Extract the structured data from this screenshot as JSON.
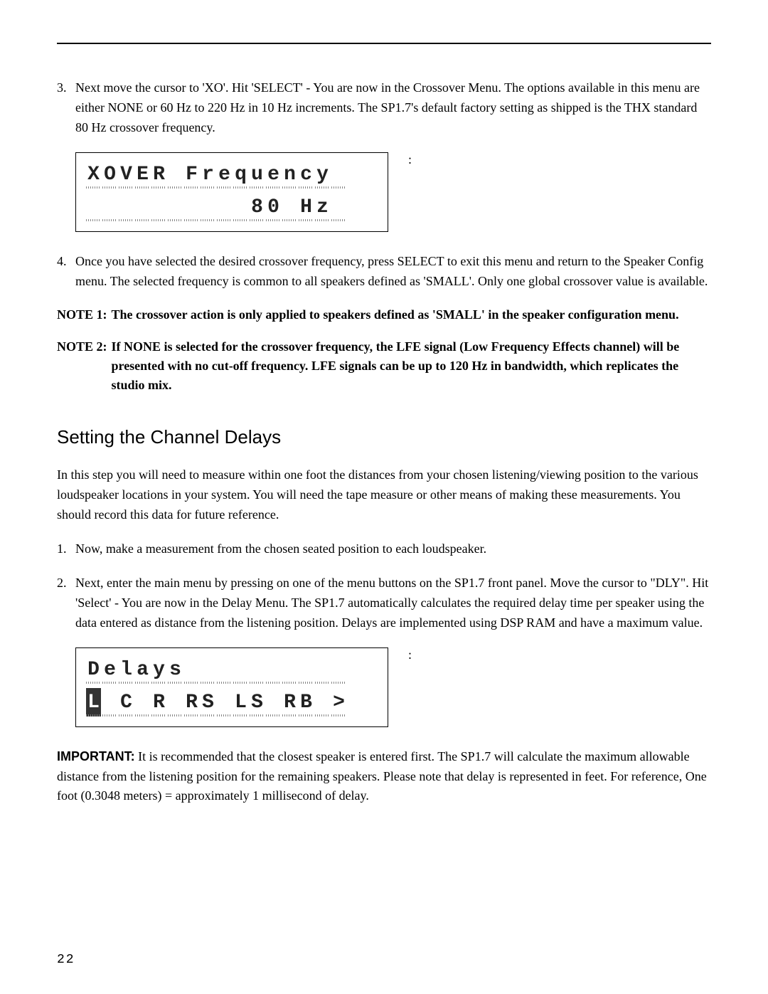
{
  "step3": {
    "num": "3.",
    "text": "Next move the cursor to 'XO'. Hit 'SELECT' - You are now in the Crossover Menu.  The options available in this menu are either NONE or 60 Hz to 220 Hz in 10 Hz increments.  The SP1.7's default factory setting as shipped is the THX standard 80 Hz crossover frequency."
  },
  "lcd1": {
    "line1": "XOVER Frequency ",
    "line2": "          80 Hz "
  },
  "step4": {
    "num": "4.",
    "text": "Once you have selected the desired crossover frequency, press SELECT to exit this menu and return to the Speaker Config menu.  The selected frequency is common to all speakers defined as 'SMALL'.  Only one global crossover value is available."
  },
  "note1": {
    "label": "NOTE 1:",
    "text": "The crossover action is only applied to speakers defined as 'SMALL' in the speaker configuration menu."
  },
  "note2": {
    "label": "NOTE 2:",
    "text": "If NONE is selected for the crossover frequency, the LFE signal (Low Frequency Effects channel) will be presented with no cut-off frequency.  LFE signals can be up to 120 Hz in bandwidth, which replicates the studio mix."
  },
  "heading": "Setting the Channel Delays",
  "intro": "In this step you will need to measure within one foot the distances from your chosen listening/viewing position to the various loudspeaker locations in your system. You will need the tape measure or other means of making these measurements. You should record this data for future reference.",
  "d1": {
    "num": "1.",
    "text": "Now, make a measurement from the chosen seated position to each loudspeaker."
  },
  "d2": {
    "num": "2.",
    "text": "Next, enter the main menu by pressing on one of the menu buttons on the SP1.7 front panel.  Move the cursor to \"DLY\".  Hit 'Select' - You are now in the Delay Menu. The SP1.7 automatically calculates the required delay time per speaker using the data entered as distance from the listening position. Delays are implemented using DSP RAM and have a maximum value."
  },
  "lcd2": {
    "line1": "Delays          ",
    "line2": "L C R RS LS RB >",
    "cursorIndex": 0
  },
  "important": {
    "label": "IMPORTANT:",
    "text": "  It is recommended that the closest speaker is entered first. The SP1.7 will calculate the maximum allowable distance from the listening position for the remaining speakers. Please note that delay is represented in feet.  For reference, One foot (0.3048 meters) = approximately 1 millisecond of delay."
  },
  "pageNumber": "22",
  "colon": ":"
}
